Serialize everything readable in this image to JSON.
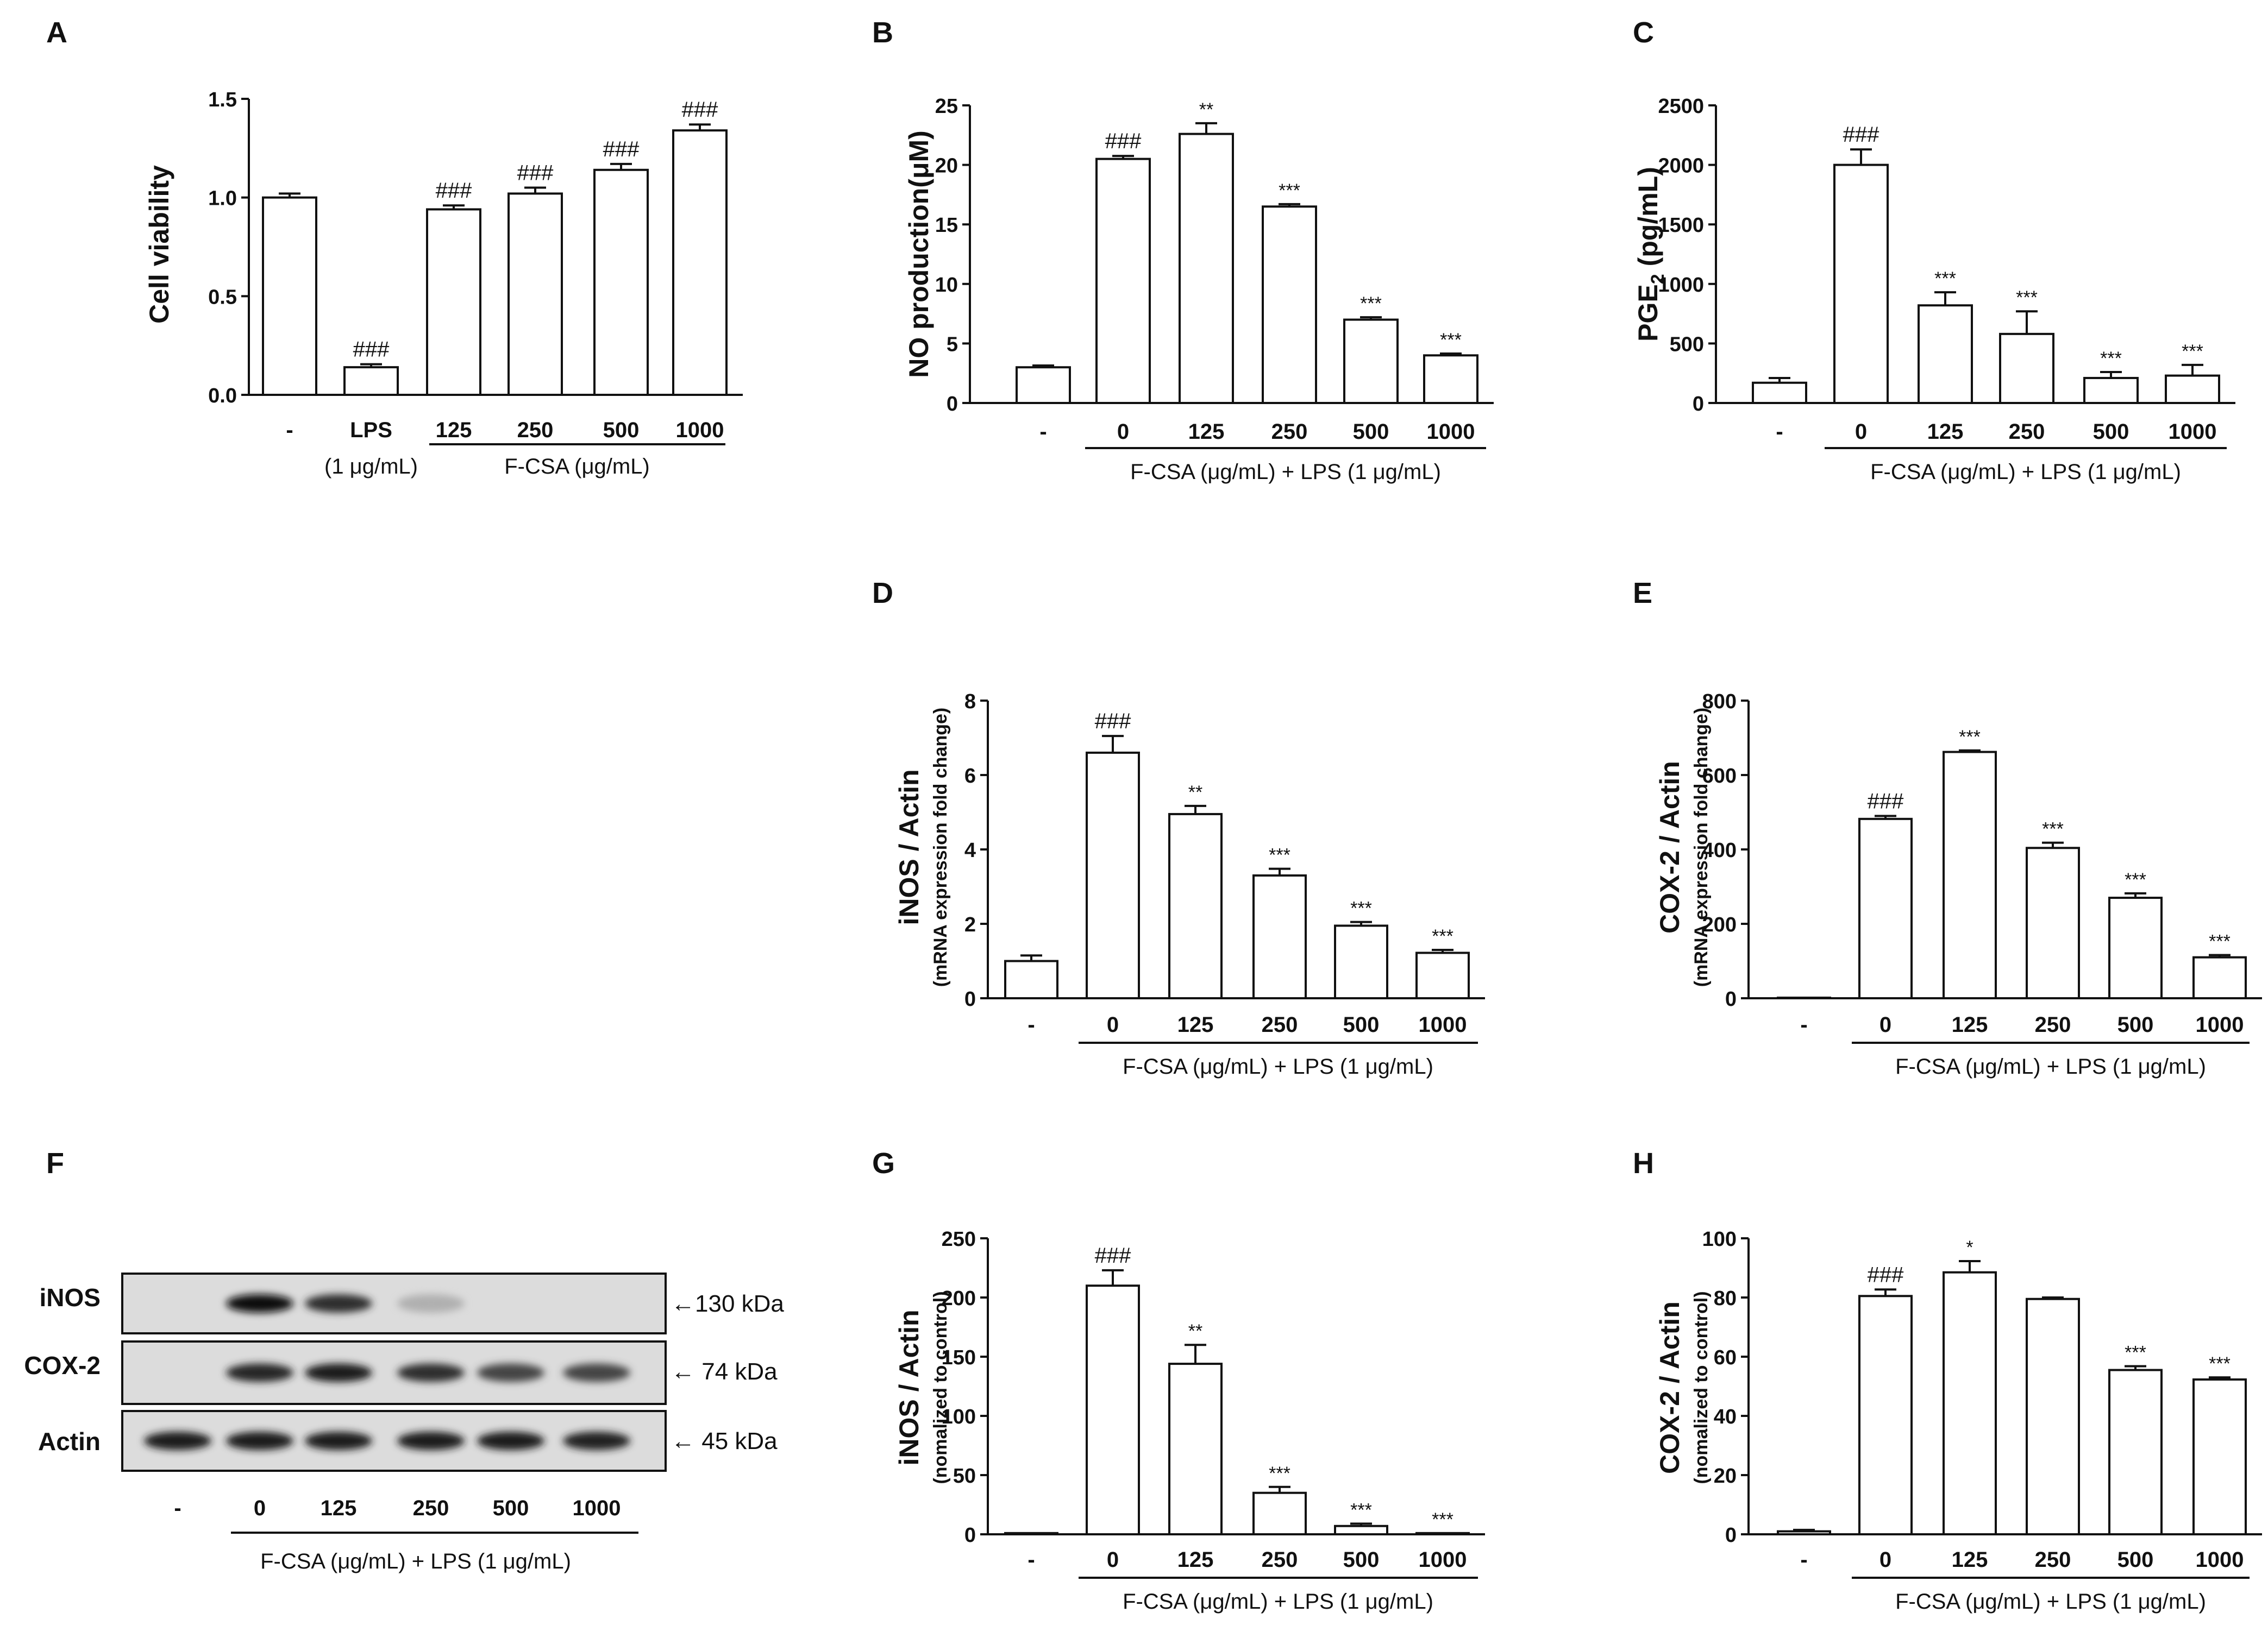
{
  "figure": {
    "panel_letters": [
      "A",
      "B",
      "C",
      "D",
      "E",
      "F",
      "G",
      "H"
    ]
  },
  "chart_data": [
    {
      "panel": "A",
      "type": "bar",
      "ylabel": "Cell viability",
      "ylabel_sub": "",
      "ylim": [
        0,
        1.5
      ],
      "yticks": [
        "0.0",
        "0.5",
        "1.0",
        "1.5"
      ],
      "categories": [
        "-",
        "LPS",
        "125",
        "250",
        "500",
        "1000"
      ],
      "values": [
        1.0,
        0.14,
        0.94,
        1.02,
        1.14,
        1.34
      ],
      "errors": [
        0.02,
        0.015,
        0.02,
        0.03,
        0.03,
        0.03
      ],
      "annotations": [
        "",
        "###",
        "###",
        "###",
        "###",
        "###"
      ],
      "group_label": "F-CSA  (μg/mL)",
      "side_label": "(1 μg/mL)"
    },
    {
      "panel": "B",
      "type": "bar",
      "ylabel": "NO production(μM)",
      "ylabel_sub": "",
      "ylim": [
        0,
        25
      ],
      "yticks": [
        "0",
        "5",
        "10",
        "15",
        "20",
        "25"
      ],
      "categories": [
        "-",
        "0",
        "125",
        "250",
        "500",
        "1000"
      ],
      "values": [
        3.0,
        20.5,
        22.6,
        16.5,
        7.0,
        4.0
      ],
      "errors": [
        0.15,
        0.25,
        0.9,
        0.2,
        0.2,
        0.15
      ],
      "annotations": [
        "",
        "###",
        "**",
        "***",
        "***",
        "***"
      ],
      "group_label": "F-CSA  (μg/mL) + LPS (1 μg/mL)"
    },
    {
      "panel": "C",
      "type": "bar",
      "ylabel": "PGE2 (pg/mL)",
      "ylabel_parts": [
        "PGE",
        "2",
        " (pg/mL)"
      ],
      "ylabel_sub": "",
      "ylim": [
        0,
        2500
      ],
      "yticks": [
        "0",
        "500",
        "1000",
        "1500",
        "2000",
        "2500"
      ],
      "categories": [
        "-",
        "0",
        "125",
        "250",
        "500",
        "1000"
      ],
      "values": [
        170,
        2000,
        820,
        580,
        210,
        230
      ],
      "errors": [
        40,
        130,
        110,
        190,
        50,
        90
      ],
      "annotations": [
        "",
        "###",
        "***",
        "***",
        "***",
        "***"
      ],
      "group_label": "F-CSA  (μg/mL) + LPS (1 μg/mL)"
    },
    {
      "panel": "D",
      "type": "bar",
      "ylabel": "iNOS / Actin",
      "ylabel_sub": "(mRNA expression fold change)",
      "ylim": [
        0,
        8
      ],
      "yticks": [
        "0",
        "2",
        "4",
        "6",
        "8"
      ],
      "categories": [
        "-",
        "0",
        "125",
        "250",
        "500",
        "1000"
      ],
      "values": [
        1.0,
        6.6,
        4.95,
        3.3,
        1.95,
        1.22
      ],
      "errors": [
        0.15,
        0.45,
        0.22,
        0.18,
        0.1,
        0.08
      ],
      "annotations": [
        "",
        "###",
        "**",
        "***",
        "***",
        "***"
      ],
      "group_label": "F-CSA  (μg/mL) + LPS (1 μg/mL)"
    },
    {
      "panel": "E",
      "type": "bar",
      "ylabel": "COX-2 / Actin",
      "ylabel_sub": "(mRNA expression fold change)",
      "ylim": [
        0,
        800
      ],
      "yticks": [
        "0",
        "200",
        "400",
        "600",
        "800"
      ],
      "categories": [
        "-",
        "0",
        "125",
        "250",
        "500",
        "1000"
      ],
      "values": [
        1,
        482,
        662,
        404,
        270,
        110
      ],
      "errors": [
        0,
        8,
        4,
        14,
        12,
        6
      ],
      "annotations": [
        "",
        "###",
        "***",
        "***",
        "***",
        "***"
      ],
      "group_label": "F-CSA  (μg/mL) + LPS (1 μg/mL)"
    },
    {
      "panel": "G",
      "type": "bar",
      "ylabel": "iNOS / Actin",
      "ylabel_sub": "(nomalized to control)",
      "ylim": [
        0,
        250
      ],
      "yticks": [
        "0",
        "50",
        "100",
        "150",
        "200",
        "250"
      ],
      "categories": [
        "-",
        "0",
        "125",
        "250",
        "500",
        "1000"
      ],
      "values": [
        1,
        210,
        144,
        35,
        7,
        1
      ],
      "errors": [
        0,
        13,
        16,
        5,
        2,
        0
      ],
      "annotations": [
        "",
        "###",
        "**",
        "***",
        "***",
        "***"
      ],
      "group_label": "F-CSA  (μg/mL) + LPS (1 μg/mL)"
    },
    {
      "panel": "H",
      "type": "bar",
      "ylabel": "COX-2 / Actin",
      "ylabel_sub": "(nomalized to control)",
      "ylim": [
        0,
        100
      ],
      "yticks": [
        "0",
        "20",
        "40",
        "60",
        "80",
        "100"
      ],
      "categories": [
        "-",
        "0",
        "125",
        "250",
        "500",
        "1000"
      ],
      "values": [
        1,
        80.5,
        88.5,
        79.5,
        55.5,
        52.3
      ],
      "errors": [
        0.5,
        2.2,
        3.8,
        0.5,
        1.3,
        0.7
      ],
      "annotations": [
        "",
        "###",
        "*",
        "",
        "***",
        "***"
      ],
      "group_label": "F-CSA  (μg/mL) + LPS (1 μg/mL)"
    }
  ],
  "western_blot": {
    "panel": "F",
    "rows": [
      {
        "label": "iNOS",
        "kda": "←130 kDa",
        "intensity": [
          0,
          1.0,
          0.85,
          0.25,
          0,
          0
        ]
      },
      {
        "label": "COX-2",
        "kda": "← 74 kDa",
        "intensity": [
          0,
          0.9,
          0.95,
          0.85,
          0.75,
          0.75
        ]
      },
      {
        "label": "Actin",
        "kda": "← 45 kDa",
        "intensity": [
          0.95,
          0.95,
          0.95,
          0.95,
          0.95,
          0.92
        ]
      }
    ],
    "lanes": [
      "-",
      "0",
      "125",
      "250",
      "500",
      "1000"
    ],
    "group_label": "F-CSA (μg/mL) + LPS (1 μg/mL)"
  }
}
